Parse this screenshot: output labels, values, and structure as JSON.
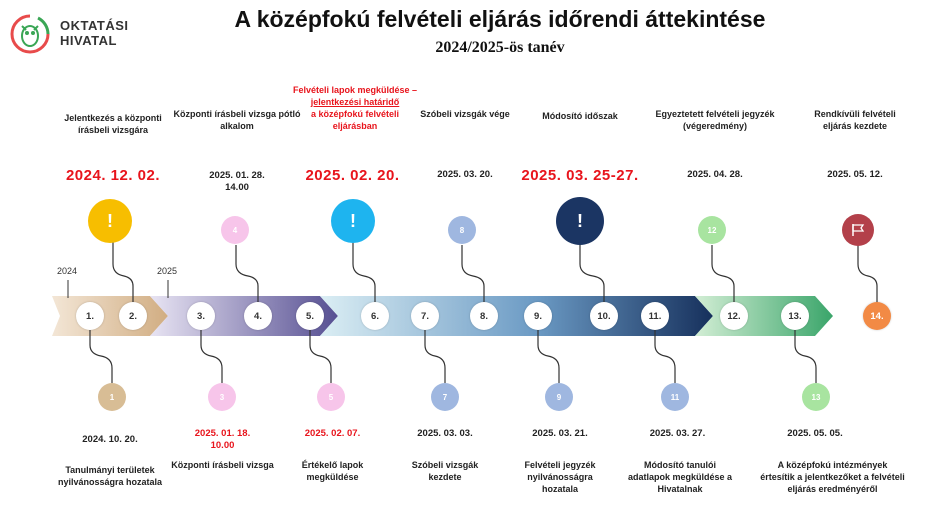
{
  "logo": {
    "line1": "OKTATÁSI",
    "line2": "HIVATAL"
  },
  "title": "A középfokú felvételi eljárás időrendi áttekintése",
  "subtitle": "2024/2025-ös tanév",
  "years": [
    "2024",
    "2025"
  ],
  "steps": [
    "1.",
    "2.",
    "3.",
    "4.",
    "5.",
    "6.",
    "7.",
    "8.",
    "9.",
    "10.",
    "11.",
    "12.",
    "13.",
    "14."
  ],
  "top": [
    {
      "label": "Jelentkezés a központi írásbeli vizsgára",
      "date": "2024. 12. 02.",
      "marker": "!"
    },
    {
      "label": "Központi írásbeli vizsga pótló alkalom",
      "date1": "2025. 01. 28.",
      "date2": "14.00",
      "marker": "4"
    },
    {
      "label1": "Felvételi lapok megküldése –",
      "label2": "jelentkezési határidő",
      "label3": "a középfokú felvételi eljárásban",
      "date": "2025. 02. 20.",
      "marker": "!"
    },
    {
      "label": "Szóbeli vizsgák vége",
      "date": "2025. 03. 20.",
      "marker": "8"
    },
    {
      "label": "Módosító időszak",
      "date": "2025. 03. 25-27.",
      "marker": "!"
    },
    {
      "label": "Egyeztetett felvételi jegyzék (végeredmény)",
      "date": "2025. 04. 28.",
      "marker": "12"
    },
    {
      "label": "Rendkívüli felvételi eljárás kezdete",
      "date": "2025. 05. 12.",
      "marker": "flag-icon"
    }
  ],
  "bottom": [
    {
      "marker": "1",
      "date": "2024. 10. 20.",
      "label": "Tanulmányi területek nyilvánosságra hozatala"
    },
    {
      "marker": "3",
      "date1": "2025. 01. 18.",
      "date2": "10.00",
      "label": "Központi írásbeli vizsga"
    },
    {
      "marker": "5",
      "date": "2025. 02. 07.",
      "label": "Értékelő lapok megküldése"
    },
    {
      "marker": "7",
      "date": "2025. 03. 03.",
      "label": "Szóbeli vizsgák kezdete"
    },
    {
      "marker": "9",
      "date": "2025. 03. 21.",
      "label": "Felvételi jegyzék nyilvánosságra hozatala"
    },
    {
      "marker": "11",
      "date": "2025. 03. 27.",
      "label": "Módosító tanulói adatlapok megküldése a Hivatalnak"
    },
    {
      "marker": "13",
      "date": "2025. 05. 05.",
      "label": "A középfokú intézmények értesítik a jelentkezőket a felvételi eljárás eredményéről"
    }
  ],
  "colors": {
    "red": "#e8141c",
    "yellow": "#f7be00",
    "cyan": "#1eb4ef",
    "navy": "#1b3563",
    "pink": "#f7c5ea",
    "tan": "#d8bd95",
    "lightblue": "#9fb7e0",
    "green": "#a8e4a0",
    "maroon": "#b3404a",
    "orange": "#f28a45"
  }
}
